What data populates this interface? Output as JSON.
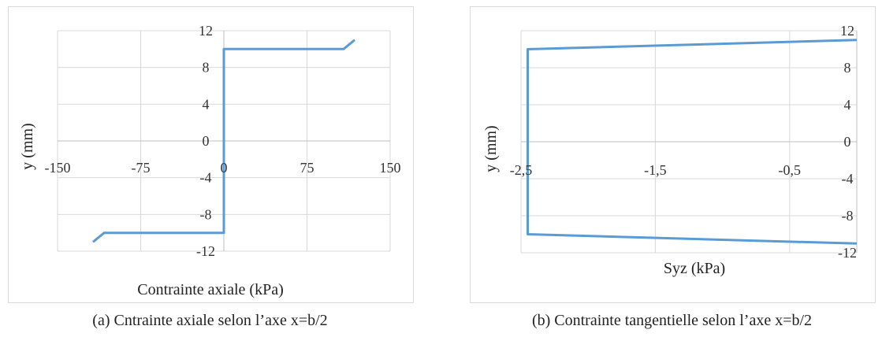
{
  "captions": {
    "a": "(a) Cntrainte axiale selon l’axe x=b/2",
    "b": "(b) Contrainte tangentielle selon l’axe x=b/2"
  },
  "chart_data": [
    {
      "type": "line",
      "title": "",
      "xlabel": "Contrainte axiale (kPa)",
      "ylabel": "y (mm)",
      "xlim": [
        -150,
        150
      ],
      "ylim": [
        -12,
        12
      ],
      "xticks": [
        -150,
        -75,
        0,
        75,
        150
      ],
      "xtick_labels": [
        "-150",
        "-75",
        "0",
        "75",
        "150"
      ],
      "yticks": [
        12,
        8,
        4,
        0,
        -4,
        -8,
        -12
      ],
      "ytick_labels": [
        "12",
        "8",
        "4",
        "0",
        "-4",
        "-8",
        "-12"
      ],
      "grid": true,
      "legend": "none",
      "color": "#5b9bd5",
      "series": [
        {
          "x": [
            -118,
            -108,
            0,
            0,
            0,
            108,
            118
          ],
          "y": [
            -11,
            -10,
            -10,
            0,
            10,
            10,
            11
          ]
        }
      ]
    },
    {
      "type": "line",
      "title": "",
      "xlabel": "Syz (kPa)",
      "ylabel": "y (mm)",
      "xlim": [
        -2.5,
        0
      ],
      "ylim": [
        -12,
        12
      ],
      "xticks": [
        -2.5,
        -1.5,
        -0.5
      ],
      "xtick_labels": [
        "-2,5",
        "-1,5",
        "-0,5"
      ],
      "yticks": [
        12,
        8,
        4,
        0,
        -4,
        -8,
        -12
      ],
      "ytick_labels": [
        "12",
        "8",
        "4",
        "0",
        "-4",
        "-8",
        "-12"
      ],
      "y_axis_position": "right",
      "grid": true,
      "legend": "none",
      "color": "#5b9bd5",
      "series": [
        {
          "x": [
            0,
            -2.45,
            -2.45,
            0
          ],
          "y": [
            11,
            10,
            -10,
            -11
          ]
        }
      ]
    }
  ]
}
